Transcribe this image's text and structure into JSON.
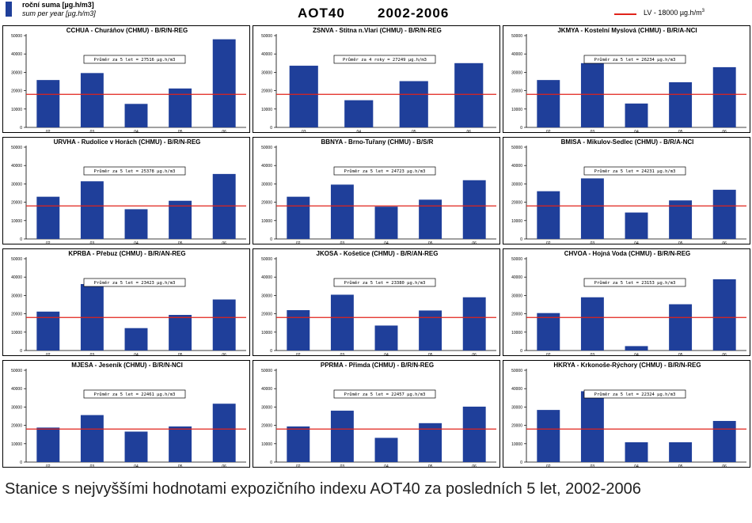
{
  "header": {
    "legend_bar_cz": "roční suma [µg.h/m3]",
    "legend_bar_en": "sum per year [µg.h/m3]",
    "title": "AOT40",
    "years": "2002-2006",
    "legend_lv": "LV   - 18000 µg.h/m",
    "legend_lv_sup": "3"
  },
  "colors": {
    "bar": "#1f3f9a",
    "lv_line": "#e0231a"
  },
  "caption": "Stanice s nejvyššími hodnotami expozičního indexu AOT40 za posledních 5 let, 2002-2006",
  "chart_data": [
    {
      "type": "bar",
      "title": "CCHUA - Churáňov (CHMU) - B/R/N-REG",
      "annotation": "Průměr za 5 let = 27516 µg.h/m3",
      "categories": [
        "02",
        "03",
        "04",
        "05",
        "06"
      ],
      "values": [
        25800,
        29600,
        12800,
        21200,
        48000
      ],
      "reference_line": 18000,
      "ylim": [
        0,
        50000
      ],
      "yticks": [
        "0",
        "10000",
        "20000",
        "30000",
        "40000",
        "50000"
      ]
    },
    {
      "type": "bar",
      "title": "ZSNVA - Stitna n.Vlari (CHMU) - B/R/N-REG",
      "annotation": "Průměr za 4 roky = 27249 µg.h/m3",
      "categories": [
        "03",
        "04",
        "05",
        "06"
      ],
      "values": [
        33600,
        14800,
        25200,
        35000
      ],
      "reference_line": 18000,
      "ylim": [
        0,
        50000
      ],
      "yticks": [
        "0",
        "10000",
        "20000",
        "30000",
        "40000",
        "50000"
      ]
    },
    {
      "type": "bar",
      "title": "JKMYA - Kostelní Myslová (CHMU) - B/R/A-NCI",
      "annotation": "Průměr za 5 let = 26234 µg.h/m3",
      "categories": [
        "02",
        "03",
        "04",
        "05",
        "06"
      ],
      "values": [
        25800,
        35000,
        13000,
        24600,
        32800
      ],
      "reference_line": 18000,
      "ylim": [
        0,
        50000
      ],
      "yticks": [
        "0",
        "10000",
        "20000",
        "30000",
        "40000",
        "50000"
      ]
    },
    {
      "type": "bar",
      "title": "URVHA - Rudolice v Horách (CHMU) - B/R/N-REG",
      "annotation": "Průměr za 5 let = 25378 µg.h/m3",
      "categories": [
        "02",
        "03",
        "04",
        "05",
        "06"
      ],
      "values": [
        23000,
        31400,
        16200,
        20800,
        35400
      ],
      "reference_line": 18000,
      "ylim": [
        0,
        50000
      ],
      "yticks": [
        "0",
        "10000",
        "20000",
        "30000",
        "40000",
        "50000"
      ]
    },
    {
      "type": "bar",
      "title": "BBNYA - Brno-Tuřany (CHMU) - B/S/R",
      "annotation": "Průměr za 5 let = 24723 µg.h/m3",
      "categories": [
        "02",
        "03",
        "04",
        "05",
        "06"
      ],
      "values": [
        23000,
        29600,
        17600,
        21400,
        32000
      ],
      "reference_line": 18000,
      "ylim": [
        0,
        50000
      ],
      "yticks": [
        "0",
        "10000",
        "20000",
        "30000",
        "40000",
        "50000"
      ]
    },
    {
      "type": "bar",
      "title": "BMISA - Mikulov-Sedlec (CHMU) - B/R/A-NCI",
      "annotation": "Průměr za 5 let = 24231 µg.h/m3",
      "categories": [
        "02",
        "03",
        "04",
        "05",
        "06"
      ],
      "values": [
        26000,
        33000,
        14400,
        21000,
        26800
      ],
      "reference_line": 18000,
      "ylim": [
        0,
        50000
      ],
      "yticks": [
        "0",
        "10000",
        "20000",
        "30000",
        "40000",
        "50000"
      ]
    },
    {
      "type": "bar",
      "title": "KPRBA - Přebuz (CHMU) - B/R/AN-REG",
      "annotation": "Průměr za 5 let = 23423 µg.h/m3",
      "categories": [
        "02",
        "03",
        "04",
        "05",
        "06"
      ],
      "values": [
        21200,
        36200,
        12200,
        19400,
        27800
      ],
      "reference_line": 18000,
      "ylim": [
        0,
        50000
      ],
      "yticks": [
        "0",
        "10000",
        "20000",
        "30000",
        "40000",
        "50000"
      ]
    },
    {
      "type": "bar",
      "title": "JKOSA - Košetice (CHMU) - B/R/AN-REG",
      "annotation": "Průměr za 5 let = 23380 µg.h/m3",
      "categories": [
        "02",
        "03",
        "04",
        "05",
        "06"
      ],
      "values": [
        22000,
        30400,
        13600,
        21800,
        29000
      ],
      "reference_line": 18000,
      "ylim": [
        0,
        50000
      ],
      "yticks": [
        "0",
        "10000",
        "20000",
        "30000",
        "40000",
        "50000"
      ]
    },
    {
      "type": "bar",
      "title": "CHVOA - Hojná Voda (CHMU) - B/R/N-REG",
      "annotation": "Průměr za 5 let = 23153 µg.h/m3",
      "categories": [
        "02",
        "03",
        "04",
        "05",
        "06"
      ],
      "values": [
        20400,
        29000,
        2400,
        25200,
        38800
      ],
      "reference_line": 18000,
      "ylim": [
        0,
        50000
      ],
      "yticks": [
        "0",
        "10000",
        "20000",
        "30000",
        "40000",
        "50000"
      ]
    },
    {
      "type": "bar",
      "title": "MJESA - Jeseník (CHMU) - B/R/N-NCI",
      "annotation": "Průměr za 5 let = 22461 µg.h/m3",
      "categories": [
        "02",
        "03",
        "04",
        "05",
        "06"
      ],
      "values": [
        18800,
        25600,
        16600,
        19400,
        31800
      ],
      "reference_line": 18000,
      "ylim": [
        0,
        50000
      ],
      "yticks": [
        "0",
        "10000",
        "20000",
        "30000",
        "40000",
        "50000"
      ]
    },
    {
      "type": "bar",
      "title": "PPRMA - Přimda (CHMU) - B/R/N-REG",
      "annotation": "Průměr za 5 let = 22457 µg.h/m3",
      "categories": [
        "02",
        "03",
        "04",
        "05",
        "06"
      ],
      "values": [
        19400,
        28000,
        13200,
        21200,
        30200
      ],
      "reference_line": 18000,
      "ylim": [
        0,
        50000
      ],
      "yticks": [
        "0",
        "10000",
        "20000",
        "30000",
        "40000",
        "50000"
      ]
    },
    {
      "type": "bar",
      "title": "HKRYA - Krkonoše-Rýchory (CHMU) - B/R/N-REG",
      "annotation": "Průměr za 5 let = 22324 µg.h/m3",
      "categories": [
        "02",
        "03",
        "04",
        "05",
        "06"
      ],
      "values": [
        28400,
        38600,
        10800,
        10800,
        22400
      ],
      "reference_line": 18000,
      "ylim": [
        0,
        50000
      ],
      "yticks": [
        "0",
        "10000",
        "20000",
        "30000",
        "40000",
        "50000"
      ]
    }
  ]
}
